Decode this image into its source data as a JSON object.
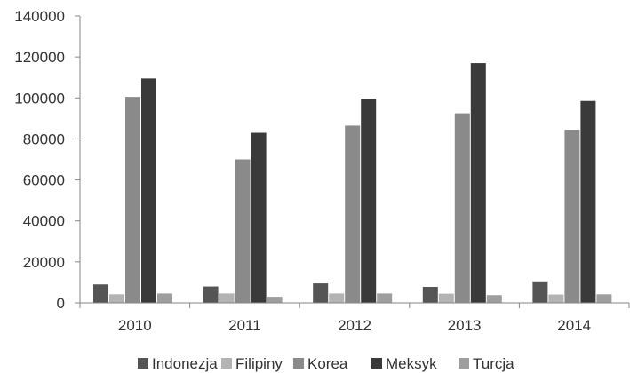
{
  "chart_data": {
    "type": "bar",
    "title": "",
    "xlabel": "",
    "ylabel": "",
    "categories": [
      "2010",
      "2011",
      "2012",
      "2013",
      "2014"
    ],
    "ylim": [
      0,
      140000
    ],
    "yticks": [
      0,
      20000,
      40000,
      60000,
      80000,
      100000,
      120000,
      140000
    ],
    "ytick_labels": [
      "0",
      "20000",
      "40000",
      "60000",
      "80000",
      "100000",
      "120000",
      "140000"
    ],
    "grid": false,
    "legend_position": "bottom",
    "series": [
      {
        "name": "Indonezja",
        "color": "#555555",
        "values": [
          9000,
          8000,
          9500,
          7800,
          10500
        ]
      },
      {
        "name": "Filipiny",
        "color": "#b3b3b3",
        "values": [
          4200,
          4600,
          4600,
          4500,
          4100
        ]
      },
      {
        "name": "Korea",
        "color": "#8a8a8a",
        "values": [
          100500,
          70000,
          86500,
          92500,
          84500
        ]
      },
      {
        "name": "Meksyk",
        "color": "#3a3a3a",
        "values": [
          109500,
          83000,
          99500,
          117000,
          98500
        ]
      },
      {
        "name": "Turcja",
        "color": "#9e9e9e",
        "values": [
          4600,
          3000,
          4600,
          3800,
          4200
        ]
      }
    ]
  }
}
